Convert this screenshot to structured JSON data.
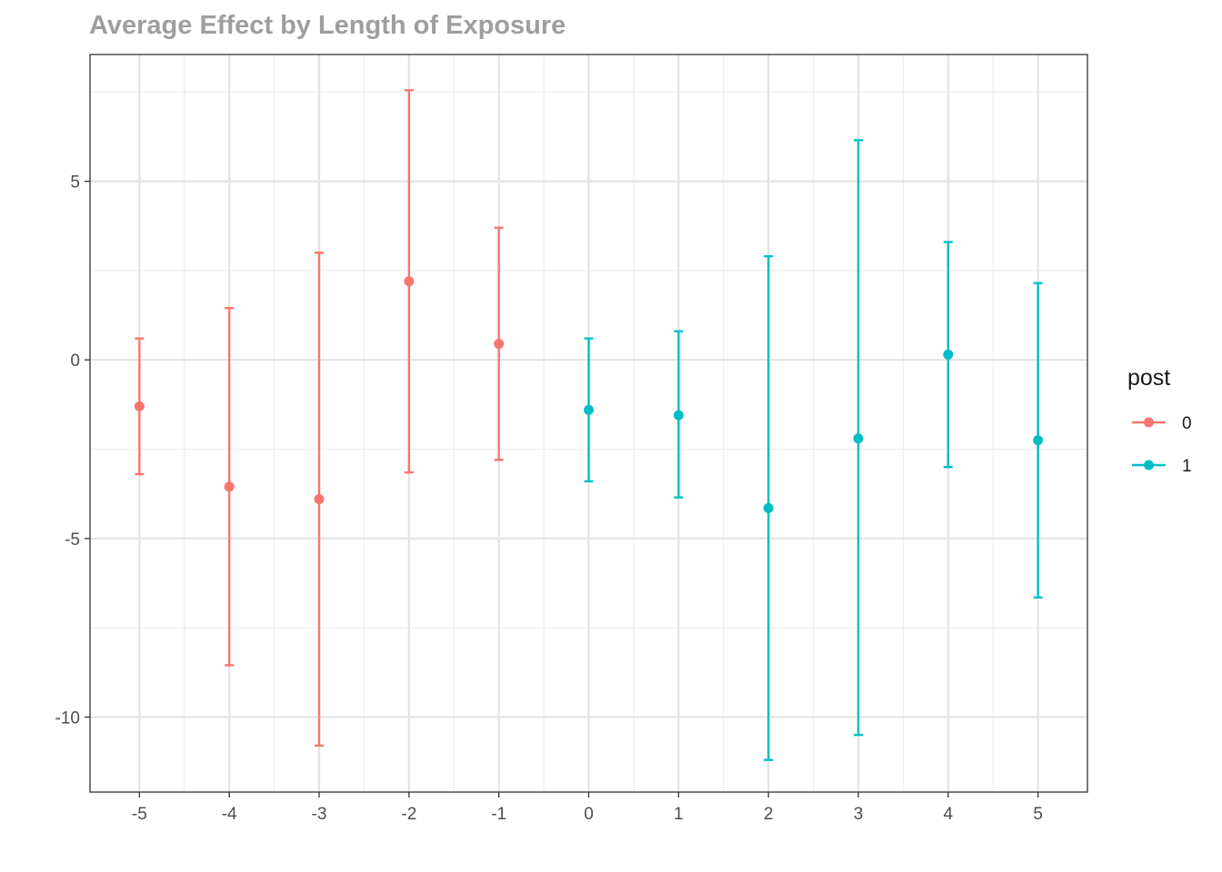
{
  "chart_data": {
    "type": "scatter",
    "title": "Average Effect by Length of Exposure",
    "xlabel": "",
    "ylabel": "",
    "x_ticks": [
      -5,
      -4,
      -3,
      -2,
      -1,
      0,
      1,
      2,
      3,
      4,
      5
    ],
    "y_ticks": [
      -10,
      -5,
      0,
      5
    ],
    "xlim": [
      -5.55,
      5.55
    ],
    "ylim": [
      -12.1,
      8.55
    ],
    "grid": true,
    "legend": {
      "title": "post",
      "position": "right"
    },
    "series": [
      {
        "name": "0",
        "color": "#F8766D",
        "points": [
          {
            "x": -5,
            "y": -1.3,
            "lo": -3.2,
            "hi": 0.6
          },
          {
            "x": -4,
            "y": -3.55,
            "lo": -8.55,
            "hi": 1.45
          },
          {
            "x": -3,
            "y": -3.9,
            "lo": -10.8,
            "hi": 3.0
          },
          {
            "x": -2,
            "y": 2.2,
            "lo": -3.15,
            "hi": 7.55
          },
          {
            "x": -1,
            "y": 0.45,
            "lo": -2.8,
            "hi": 3.7
          }
        ]
      },
      {
        "name": "1",
        "color": "#00BFC4",
        "points": [
          {
            "x": 0,
            "y": -1.4,
            "lo": -3.4,
            "hi": 0.6
          },
          {
            "x": 1,
            "y": -1.55,
            "lo": -3.85,
            "hi": 0.8
          },
          {
            "x": 2,
            "y": -4.15,
            "lo": -11.2,
            "hi": 2.9
          },
          {
            "x": 3,
            "y": -2.2,
            "lo": -10.5,
            "hi": 6.15
          },
          {
            "x": 4,
            "y": 0.15,
            "lo": -3.0,
            "hi": 3.3
          },
          {
            "x": 5,
            "y": -2.25,
            "lo": -6.65,
            "hi": 2.15
          }
        ]
      }
    ]
  }
}
